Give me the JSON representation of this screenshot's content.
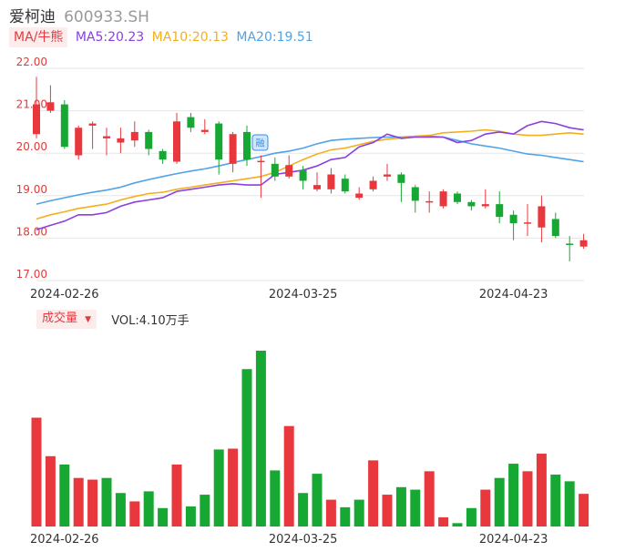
{
  "header": {
    "name": "爱柯迪",
    "code": "600933.SH"
  },
  "ma_bar": {
    "selector_label": "MA/牛熊",
    "ma5": "MA5:20.23",
    "ma10": "MA10:20.13",
    "ma20": "MA20:19.51"
  },
  "volume_bar": {
    "selector_label": "成交量",
    "volume_text": "VOL:4.10万手"
  },
  "colors": {
    "up": "#e8383d",
    "down": "#16a832",
    "ma5": "#8a3fe0",
    "ma10": "#f2b01e",
    "ma20": "#4fa3e8",
    "grid": "#e6e6e6",
    "axis_label": "#e03a3a"
  },
  "icons": {
    "dropdown": "caret-down-icon",
    "marker": "event-marker-icon"
  },
  "chart_data": [
    {
      "type": "candlestick",
      "y_ticks": [
        "17.00",
        "18.00",
        "19.00",
        "20.00",
        "21.00",
        "22.00"
      ],
      "ylim": [
        17.0,
        22.0
      ],
      "x_tick_labels": [
        {
          "index": 2,
          "label": "2024-02-26"
        },
        {
          "index": 19,
          "label": "2024-03-25"
        },
        {
          "index": 34,
          "label": "2024-04-23"
        }
      ],
      "grid": true,
      "candles": [
        {
          "o": 20.45,
          "c": 21.15,
          "h": 21.8,
          "l": 20.35
        },
        {
          "o": 21.0,
          "c": 21.2,
          "h": 21.6,
          "l": 20.95
        },
        {
          "o": 21.15,
          "c": 20.15,
          "h": 21.25,
          "l": 20.1
        },
        {
          "o": 19.95,
          "c": 20.6,
          "h": 20.65,
          "l": 19.85
        },
        {
          "o": 20.65,
          "c": 20.7,
          "h": 20.75,
          "l": 20.1
        },
        {
          "o": 20.35,
          "c": 20.4,
          "h": 20.6,
          "l": 19.95
        },
        {
          "o": 20.25,
          "c": 20.35,
          "h": 20.6,
          "l": 20.0
        },
        {
          "o": 20.3,
          "c": 20.5,
          "h": 20.75,
          "l": 20.15
        },
        {
          "o": 20.5,
          "c": 20.1,
          "h": 20.55,
          "l": 19.95
        },
        {
          "o": 20.05,
          "c": 19.85,
          "h": 20.1,
          "l": 19.75
        },
        {
          "o": 19.8,
          "c": 20.75,
          "h": 20.95,
          "l": 19.75
        },
        {
          "o": 20.85,
          "c": 20.6,
          "h": 20.95,
          "l": 20.5
        },
        {
          "o": 20.5,
          "c": 20.55,
          "h": 20.8,
          "l": 20.45
        },
        {
          "o": 20.7,
          "c": 19.85,
          "h": 20.75,
          "l": 19.5
        },
        {
          "o": 19.75,
          "c": 20.45,
          "h": 20.5,
          "l": 19.55
        },
        {
          "o": 20.5,
          "c": 19.85,
          "h": 20.65,
          "l": 19.7
        },
        {
          "o": 19.8,
          "c": 19.82,
          "h": 19.95,
          "l": 18.95
        },
        {
          "o": 19.75,
          "c": 19.45,
          "h": 19.9,
          "l": 19.35
        },
        {
          "o": 19.45,
          "c": 19.72,
          "h": 19.95,
          "l": 19.4
        },
        {
          "o": 19.6,
          "c": 19.35,
          "h": 19.7,
          "l": 19.15
        },
        {
          "o": 19.15,
          "c": 19.25,
          "h": 19.55,
          "l": 19.1
        },
        {
          "o": 19.15,
          "c": 19.5,
          "h": 19.65,
          "l": 19.05
        },
        {
          "o": 19.4,
          "c": 19.1,
          "h": 19.5,
          "l": 19.05
        },
        {
          "o": 18.95,
          "c": 19.05,
          "h": 19.2,
          "l": 18.9
        },
        {
          "o": 19.15,
          "c": 19.35,
          "h": 19.45,
          "l": 19.1
        },
        {
          "o": 19.45,
          "c": 19.5,
          "h": 19.75,
          "l": 19.35
        },
        {
          "o": 19.5,
          "c": 19.3,
          "h": 19.55,
          "l": 18.85
        },
        {
          "o": 19.2,
          "c": 18.88,
          "h": 19.25,
          "l": 18.6
        },
        {
          "o": 18.85,
          "c": 18.87,
          "h": 19.1,
          "l": 18.6
        },
        {
          "o": 18.75,
          "c": 19.1,
          "h": 19.15,
          "l": 18.7
        },
        {
          "o": 19.05,
          "c": 18.85,
          "h": 19.1,
          "l": 18.8
        },
        {
          "o": 18.85,
          "c": 18.75,
          "h": 18.9,
          "l": 18.65
        },
        {
          "o": 18.75,
          "c": 18.8,
          "h": 19.15,
          "l": 18.7
        },
        {
          "o": 18.8,
          "c": 18.5,
          "h": 19.1,
          "l": 18.35
        },
        {
          "o": 18.55,
          "c": 18.35,
          "h": 18.65,
          "l": 17.95
        },
        {
          "o": 18.35,
          "c": 18.37,
          "h": 18.8,
          "l": 18.05
        },
        {
          "o": 18.25,
          "c": 18.75,
          "h": 19.0,
          "l": 17.9
        },
        {
          "o": 18.45,
          "c": 18.05,
          "h": 18.6,
          "l": 18.0
        },
        {
          "o": 17.87,
          "c": 17.85,
          "h": 18.05,
          "l": 17.45
        },
        {
          "o": 17.8,
          "c": 17.95,
          "h": 18.1,
          "l": 17.75
        }
      ],
      "ma5": [
        18.2,
        18.3,
        18.4,
        18.55,
        18.55,
        18.6,
        18.75,
        18.85,
        18.9,
        18.95,
        19.1,
        19.15,
        19.2,
        19.25,
        19.28,
        19.25,
        19.25,
        19.5,
        19.55,
        19.6,
        19.7,
        19.85,
        19.9,
        20.15,
        20.25,
        20.45,
        20.35,
        20.38,
        20.38,
        20.38,
        20.25,
        20.3,
        20.45,
        20.5,
        20.45,
        20.65,
        20.75,
        20.7,
        20.6,
        20.55
      ],
      "ma10": [
        18.45,
        18.55,
        18.62,
        18.7,
        18.75,
        18.8,
        18.9,
        18.98,
        19.05,
        19.08,
        19.15,
        19.2,
        19.25,
        19.3,
        19.35,
        19.4,
        19.45,
        19.55,
        19.7,
        19.85,
        19.98,
        20.08,
        20.12,
        20.2,
        20.28,
        20.33,
        20.36,
        20.4,
        20.42,
        20.48,
        20.5,
        20.52,
        20.55,
        20.52,
        20.45,
        20.42,
        20.42,
        20.45,
        20.48,
        20.45
      ],
      "ma20": [
        18.8,
        18.88,
        18.95,
        19.02,
        19.08,
        19.13,
        19.2,
        19.3,
        19.38,
        19.45,
        19.52,
        19.58,
        19.63,
        19.7,
        19.78,
        19.85,
        19.92,
        20.0,
        20.05,
        20.12,
        20.22,
        20.3,
        20.33,
        20.35,
        20.37,
        20.38,
        20.38,
        20.4,
        20.4,
        20.38,
        20.3,
        20.22,
        20.17,
        20.12,
        20.05,
        19.98,
        19.95,
        19.9,
        19.85,
        19.8
      ]
    },
    {
      "type": "bar",
      "series": "volume",
      "x_tick_labels": [
        {
          "index": 2,
          "label": "2024-02-26"
        },
        {
          "index": 19,
          "label": "2024-03-25"
        },
        {
          "index": 34,
          "label": "2024-04-23"
        }
      ],
      "values": [
        6.5,
        4.2,
        3.7,
        2.9,
        2.8,
        2.9,
        2.0,
        1.5,
        2.1,
        1.1,
        3.7,
        1.2,
        1.9,
        4.6,
        4.65,
        9.4,
        10.5,
        3.35,
        6.0,
        2.0,
        3.15,
        1.6,
        1.15,
        1.6,
        3.95,
        1.9,
        2.35,
        2.2,
        3.3,
        0.55,
        0.2,
        1.1,
        2.2,
        2.9,
        3.75,
        3.3,
        4.35,
        3.1,
        2.7,
        1.95
      ],
      "up": [
        true,
        true,
        false,
        true,
        true,
        false,
        false,
        true,
        false,
        false,
        true,
        false,
        false,
        false,
        true,
        false,
        false,
        false,
        true,
        false,
        false,
        true,
        false,
        false,
        true,
        true,
        false,
        false,
        true,
        true,
        false,
        false,
        true,
        false,
        false,
        true,
        true,
        false,
        false,
        true
      ]
    }
  ]
}
